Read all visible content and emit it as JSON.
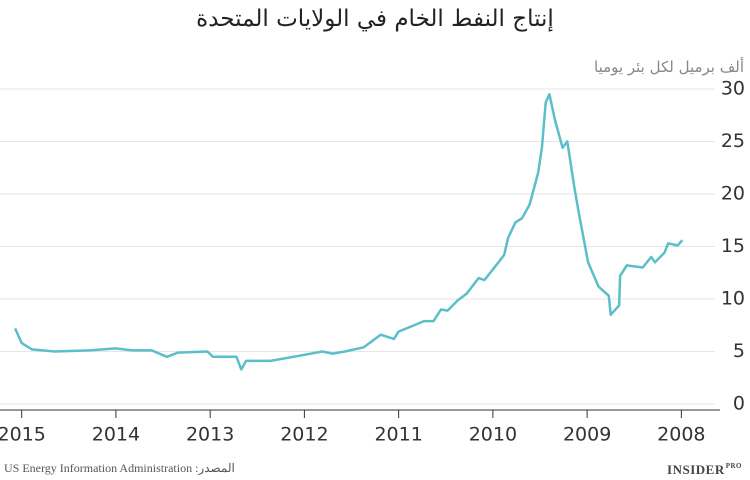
{
  "chart_data": {
    "type": "line",
    "title": "إنتاج النفط الخام في الولايات المتحدة",
    "y_label": "ألف برميل لكل بئر يوميا",
    "source": "المصدر: US Energy Information Administration",
    "logo": {
      "name": "INSIDER",
      "tag": "PRO"
    },
    "color": "#5bbfc9",
    "x": [
      2015.07,
      2015.0,
      2014.89,
      2014.65,
      2014.28,
      2014.0,
      2013.82,
      2013.62,
      2013.46,
      2013.34,
      2013.03,
      2012.97,
      2012.72,
      2012.67,
      2012.62,
      2012.36,
      2012.05,
      2011.81,
      2011.7,
      2011.57,
      2011.37,
      2011.19,
      2011.05,
      2011.0,
      2010.73,
      2010.63,
      2010.55,
      2010.48,
      2010.37,
      2010.28,
      2010.15,
      2010.09,
      2009.94,
      2009.88,
      2009.84,
      2009.76,
      2009.69,
      2009.61,
      2009.52,
      2009.48,
      2009.44,
      2009.4,
      2009.34,
      2009.26,
      2009.21,
      2009.14,
      2009.09,
      2008.99,
      2008.88,
      2008.77,
      2008.75,
      2008.66,
      2008.65,
      2008.58,
      2008.41,
      2008.32,
      2008.28,
      2008.18,
      2008.14,
      2008.04,
      2007.99
    ],
    "values": [
      7.2,
      5.8,
      5.2,
      5.0,
      5.1,
      5.3,
      5.1,
      5.1,
      4.5,
      4.9,
      5.0,
      4.5,
      4.5,
      3.3,
      4.1,
      4.1,
      4.6,
      5.0,
      4.8,
      5.0,
      5.4,
      6.6,
      6.2,
      6.9,
      7.9,
      7.9,
      9.0,
      8.9,
      9.9,
      10.5,
      12.0,
      11.8,
      13.5,
      14.2,
      15.8,
      17.3,
      17.7,
      19.0,
      22.0,
      24.4,
      28.7,
      29.5,
      27.0,
      24.4,
      25.0,
      20.9,
      18.3,
      13.5,
      11.2,
      10.3,
      8.5,
      9.4,
      12.2,
      13.2,
      13.0,
      14.0,
      13.5,
      14.4,
      15.3,
      15.1,
      15.6
    ],
    "xlim": [
      2015.23,
      2007.59
    ],
    "xticks": [
      2015,
      2014,
      2013,
      2012,
      2011,
      2010,
      2009,
      2008
    ],
    "ylim": [
      0,
      30
    ],
    "yticks": [
      0,
      5,
      10,
      15,
      20,
      25,
      30
    ],
    "grid": true
  }
}
